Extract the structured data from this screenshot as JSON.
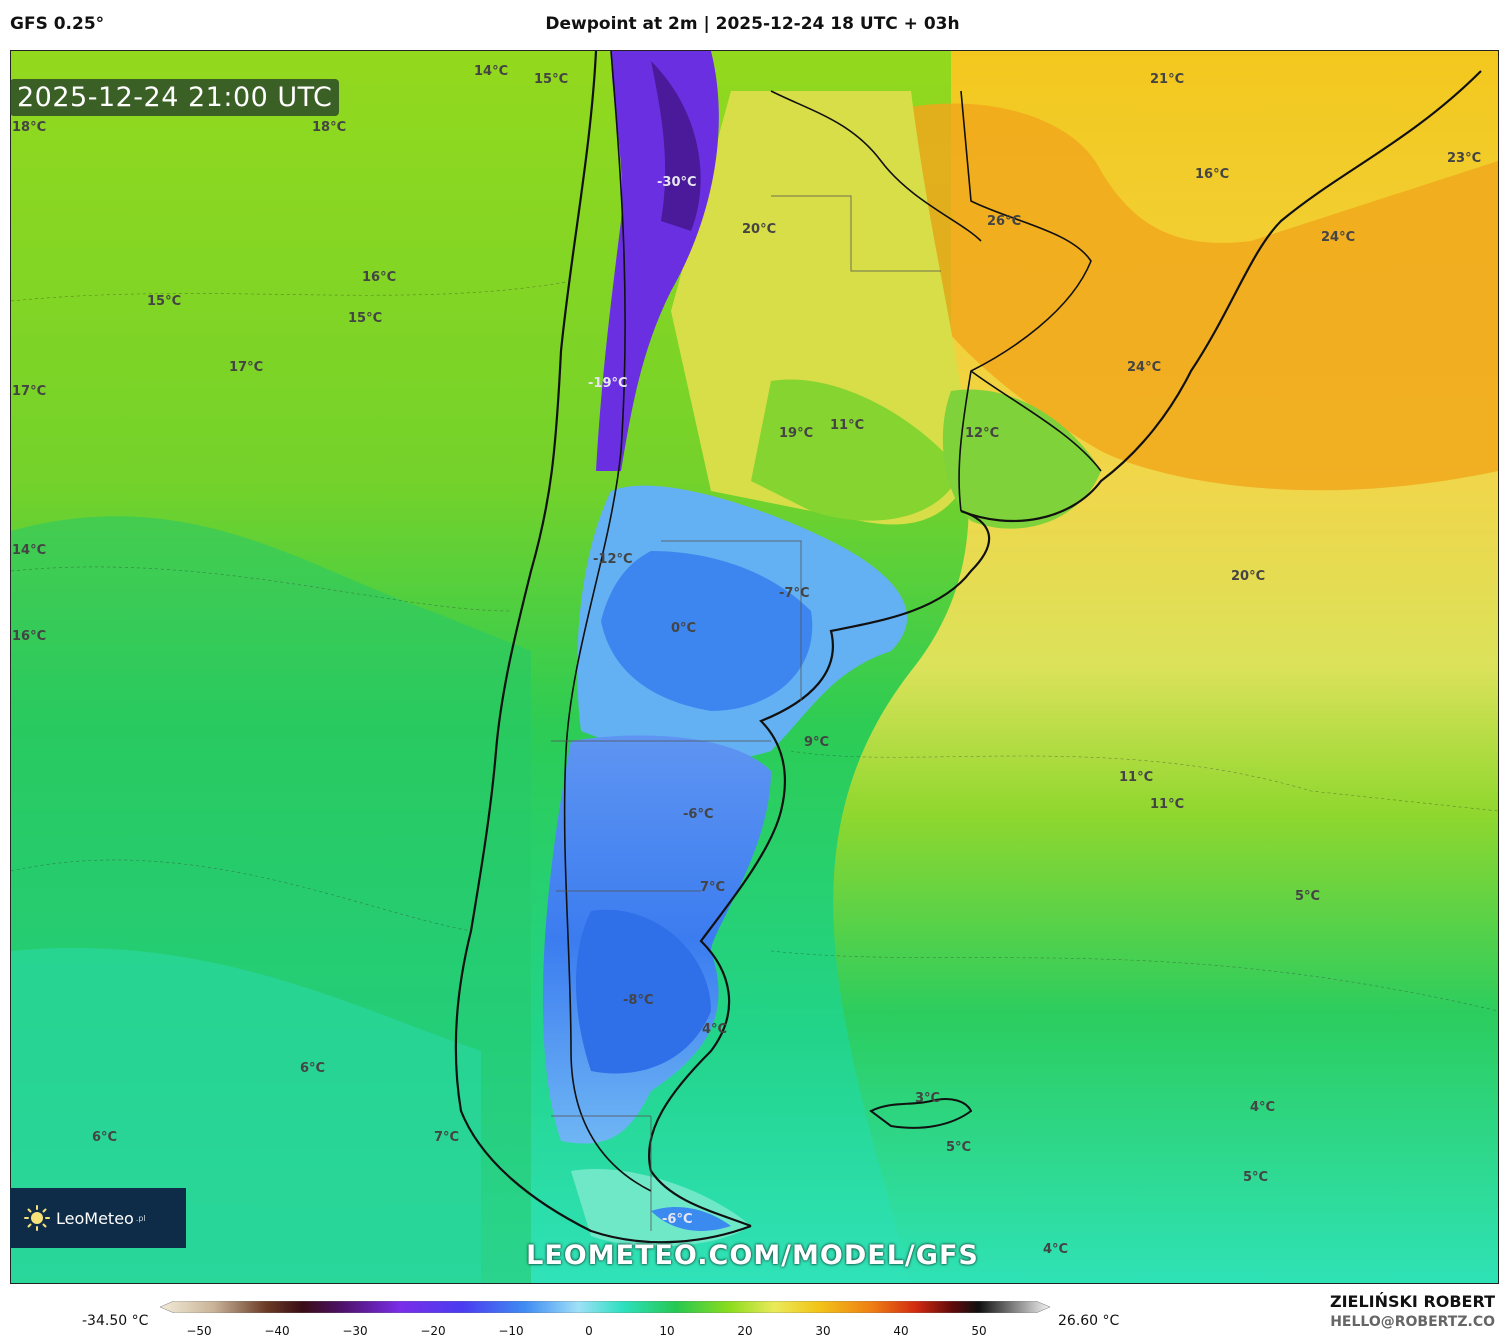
{
  "header": {
    "model": "GFS 0.25°",
    "title": "Dewpoint at 2m | 2025-12-24 18 UTC + 03h"
  },
  "map": {
    "valid_time": "2025-12-24 21:00 UTC",
    "watermark_url": "LEOMETEO.COM/MODEL/GFS",
    "logo_text": "LeoMeteo",
    "logo_suffix": ".pl",
    "labels": [
      {
        "text": "14°C"
      },
      {
        "text": "15°C"
      },
      {
        "text": "18°C"
      },
      {
        "text": "18°C"
      },
      {
        "text": "21°C"
      },
      {
        "text": "23°C"
      },
      {
        "text": "-30°C"
      },
      {
        "text": "16°C"
      },
      {
        "text": "26°C"
      },
      {
        "text": "20°C"
      },
      {
        "text": "24°C"
      },
      {
        "text": "16°C"
      },
      {
        "text": "15°C"
      },
      {
        "text": "15°C"
      },
      {
        "text": "17°C"
      },
      {
        "text": "17°C"
      },
      {
        "text": "24°C"
      },
      {
        "text": "-19°C"
      },
      {
        "text": "19°C"
      },
      {
        "text": "11°C"
      },
      {
        "text": "12°C"
      },
      {
        "text": "14°C"
      },
      {
        "text": "-12°C"
      },
      {
        "text": "20°C"
      },
      {
        "text": "-7°C"
      },
      {
        "text": "16°C"
      },
      {
        "text": "0°C"
      },
      {
        "text": "9°C"
      },
      {
        "text": "11°C"
      },
      {
        "text": "11°C"
      },
      {
        "text": "-6°C"
      },
      {
        "text": "7°C"
      },
      {
        "text": "5°C"
      },
      {
        "text": "-8°C"
      },
      {
        "text": "4°C"
      },
      {
        "text": "6°C"
      },
      {
        "text": "3°C"
      },
      {
        "text": "4°C"
      },
      {
        "text": "6°C"
      },
      {
        "text": "7°C"
      },
      {
        "text": "5°C"
      },
      {
        "text": "5°C"
      },
      {
        "text": "-6°C"
      },
      {
        "text": "4°C"
      }
    ]
  },
  "legend": {
    "min": "-34.50 °C",
    "max": "26.60 °C",
    "ticks": [
      "−50",
      "−40",
      "−30",
      "−20",
      "−10",
      "0",
      "10",
      "20",
      "30",
      "40",
      "50"
    ]
  },
  "credits": {
    "author": "ZIELIŃSKI ROBERT",
    "email": "HELLO@ROBERTZ.CO"
  },
  "colors": {
    "ocean_warm": "#86d61c",
    "ocean_mid": "#2bcf5a",
    "ocean_cold": "#2fe0b0",
    "land_warm": "#f5c400",
    "land_hot": "#f1a51a",
    "land_yellow": "#e9e04a",
    "land_blue": "#3d86f0",
    "land_lightblue": "#7fc4f5",
    "andes_violet": "#6a2fe0",
    "badge": "#2d4a2d",
    "logo_bg": "#0e2c48"
  }
}
